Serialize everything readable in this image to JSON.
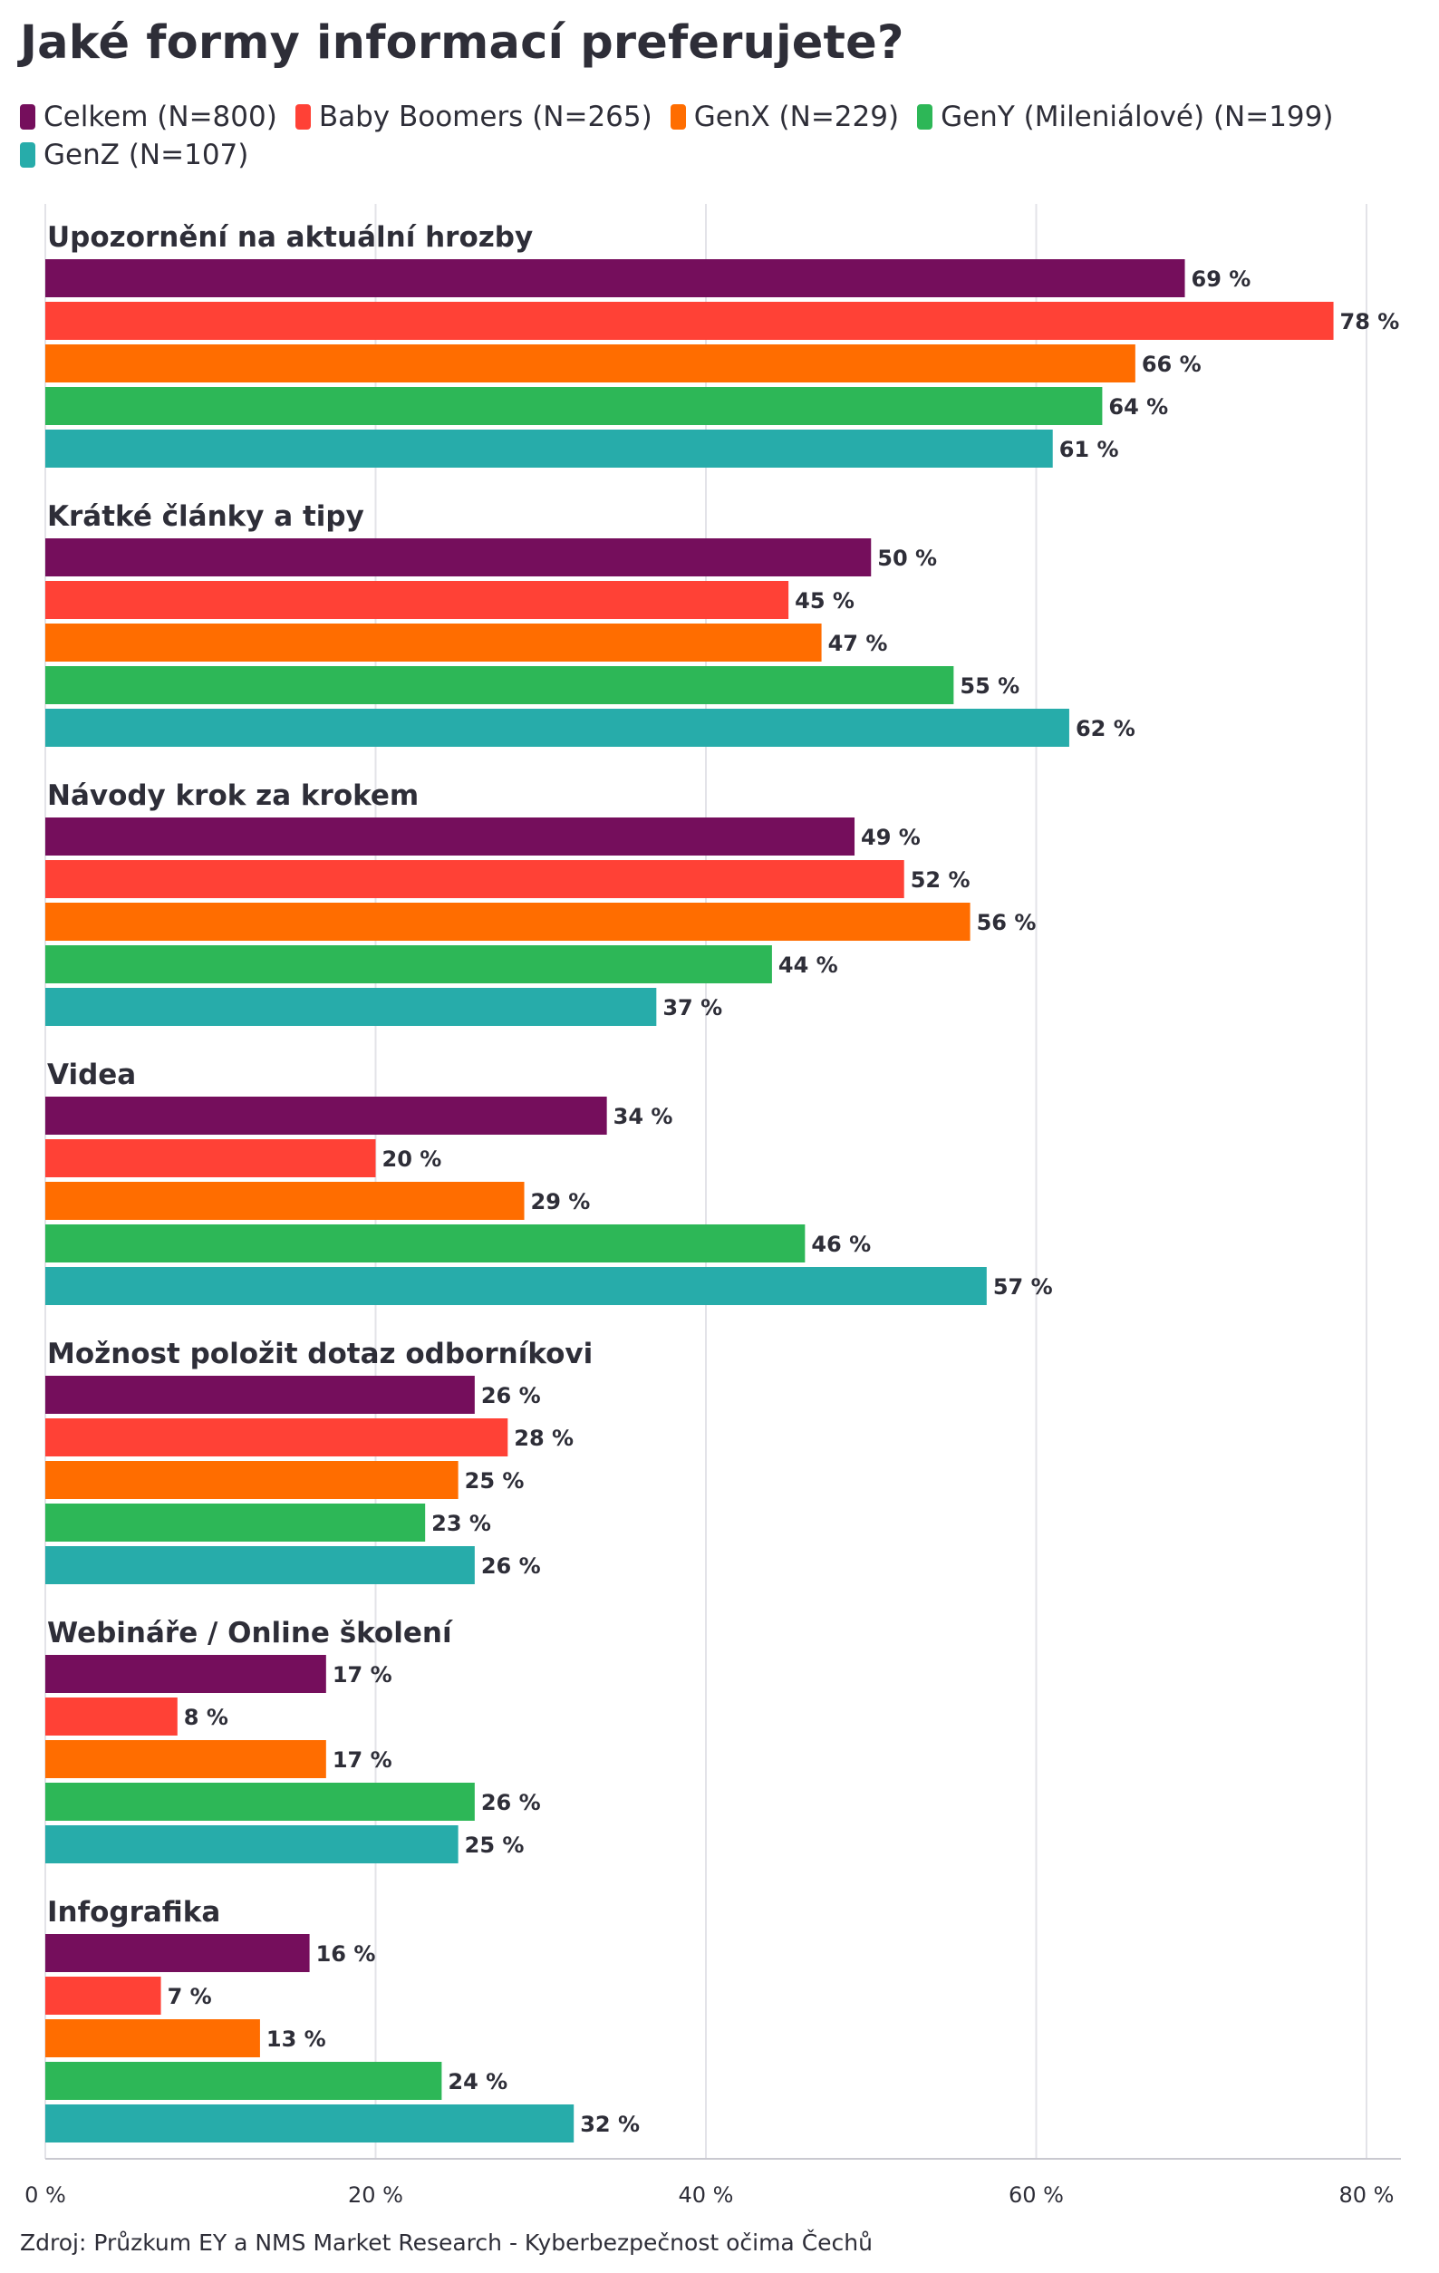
{
  "chart_data": {
    "type": "bar",
    "orientation": "horizontal",
    "title": "Jaké formy informací preferujete?",
    "source": "Zdroj: Průzkum EY a NMS Market Research - Kyberbezpečnost očima Čechů",
    "xlim": [
      0,
      80
    ],
    "xticks": [
      "0 %",
      "20 %",
      "40 %",
      "60 %",
      "80 %"
    ],
    "tick_values": [
      0,
      20,
      40,
      60,
      80
    ],
    "grid": true,
    "legend_position": "top",
    "categories": [
      "Upozornění na aktuální hrozby",
      "Krátké články a tipy",
      "Návody krok za krokem",
      "Videa",
      "Možnost položit dotaz odborníkovi",
      "Webináře / Online školení",
      "Infografika"
    ],
    "series": [
      {
        "name": "Celkem (N=800)",
        "color": "#750e5c",
        "values": [
          69,
          50,
          49,
          34,
          26,
          17,
          16
        ]
      },
      {
        "name": "Baby Boomers (N=265)",
        "color": "#ff4136",
        "values": [
          78,
          45,
          52,
          20,
          28,
          8,
          7
        ]
      },
      {
        "name": "GenX (N=229)",
        "color": "#ff6d00",
        "values": [
          66,
          47,
          56,
          29,
          25,
          17,
          13
        ]
      },
      {
        "name": "GenY (Mileniálové) (N=199)",
        "color": "#2db757",
        "values": [
          64,
          55,
          44,
          46,
          23,
          26,
          24
        ]
      },
      {
        "name": "GenZ (N=107)",
        "color": "#27acaa",
        "values": [
          61,
          62,
          37,
          57,
          26,
          25,
          32
        ]
      }
    ],
    "value_suffix": " %"
  }
}
